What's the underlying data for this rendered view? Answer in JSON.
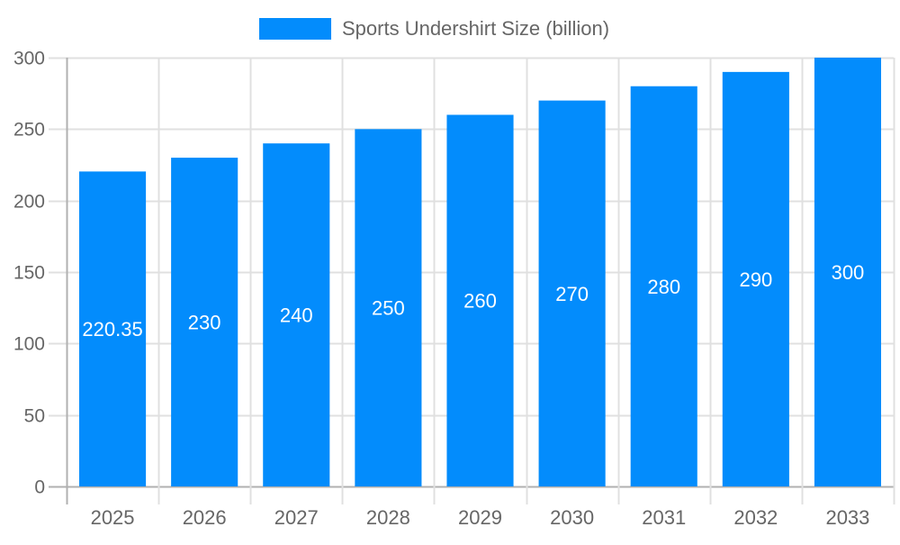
{
  "chart_data": {
    "type": "bar",
    "title": "",
    "xlabel": "",
    "ylabel": "",
    "categories": [
      "2025",
      "2026",
      "2027",
      "2028",
      "2029",
      "2030",
      "2031",
      "2032",
      "2033"
    ],
    "series": [
      {
        "name": "Sports Undershirt Size (billion)",
        "values": [
          220.35,
          230,
          240,
          250,
          260,
          270,
          280,
          290,
          300
        ],
        "color": "#038cfc"
      }
    ],
    "data_labels": [
      "220.35",
      "230",
      "240",
      "250",
      "260",
      "270",
      "280",
      "290",
      "300"
    ],
    "ylim": [
      0,
      300
    ],
    "yticks": [
      0,
      50,
      100,
      150,
      200,
      250,
      300
    ],
    "grid": true,
    "legend_position": "top"
  }
}
